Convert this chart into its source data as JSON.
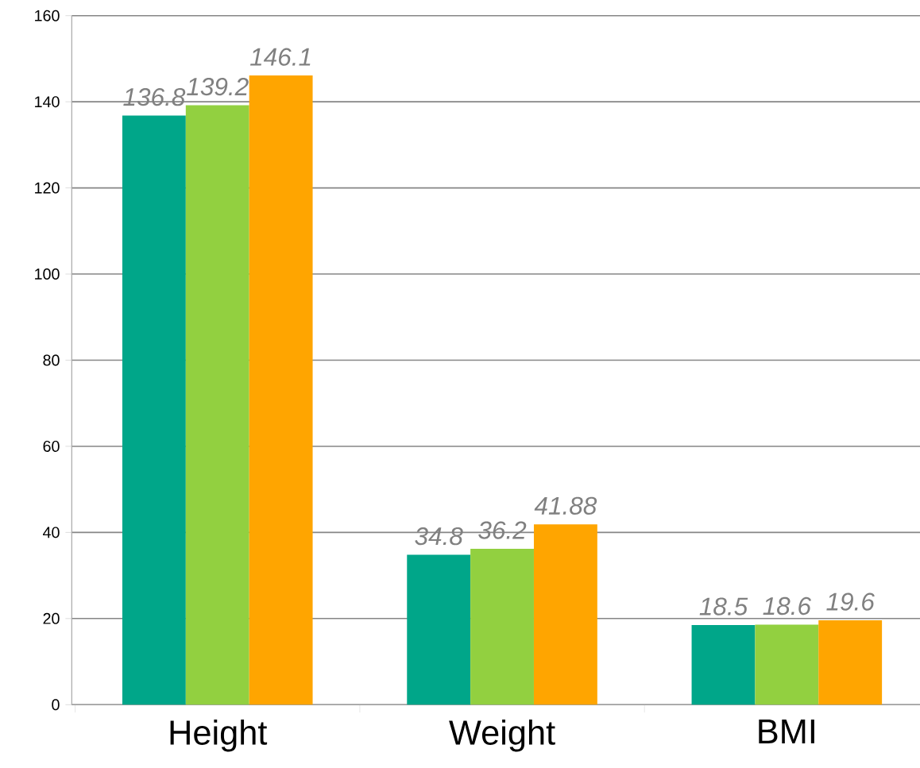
{
  "chart_data": {
    "type": "bar",
    "categories": [
      "Height",
      "Weight",
      "BMI"
    ],
    "series": [
      {
        "color": "#00a689",
        "values": [
          136.8,
          34.8,
          18.5
        ],
        "value_labels": [
          "136.8",
          "34.8",
          "18.5"
        ]
      },
      {
        "color": "#92d040",
        "values": [
          139.2,
          36.2,
          18.6
        ],
        "value_labels": [
          "139.2",
          "36.2",
          "18.6"
        ]
      },
      {
        "color": "#ffa500",
        "values": [
          146.1,
          41.88,
          19.6
        ],
        "value_labels": [
          "146.1",
          "41.88",
          "19.6"
        ]
      }
    ],
    "ylim": [
      0,
      160
    ],
    "yticks": [
      0,
      20,
      40,
      60,
      80,
      100,
      120,
      140,
      160
    ],
    "grid": "y"
  }
}
